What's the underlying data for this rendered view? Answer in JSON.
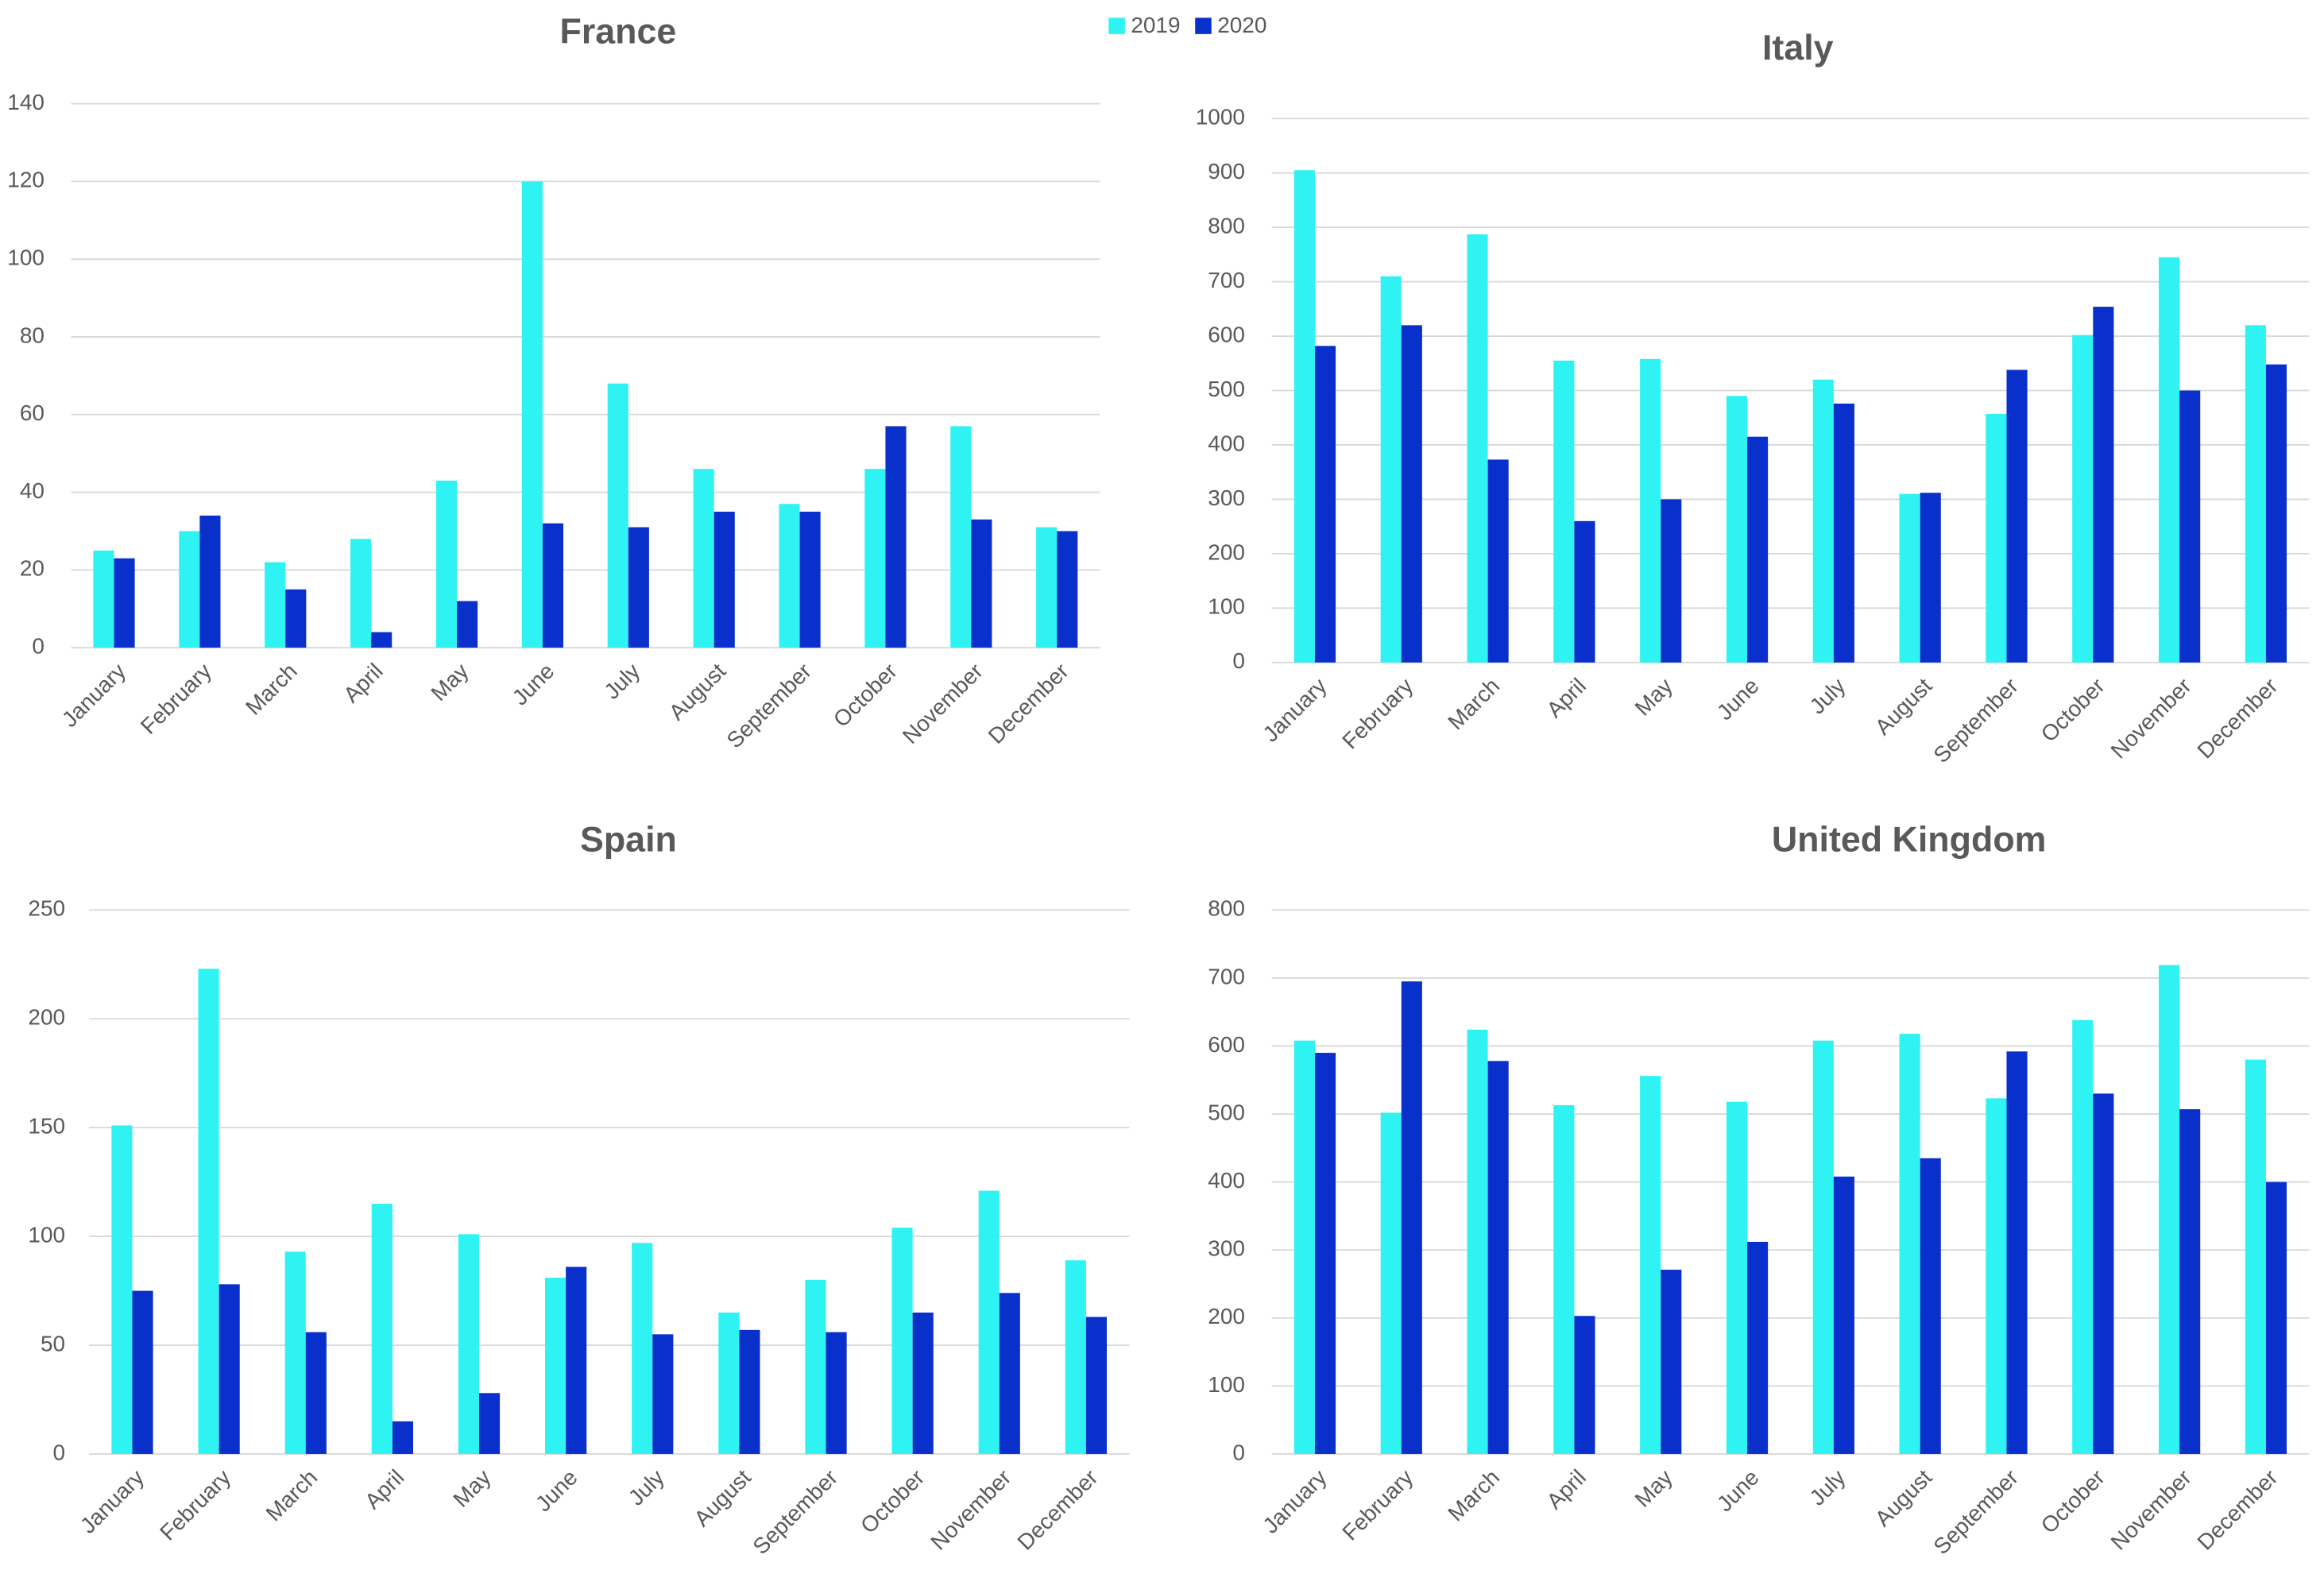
{
  "chart_data": [
    {
      "type": "bar",
      "title": "France",
      "categories": [
        "January",
        "February",
        "March",
        "April",
        "May",
        "June",
        "July",
        "August",
        "September",
        "October",
        "November",
        "December"
      ],
      "series": [
        {
          "name": "2019",
          "color": "#2ff3f3",
          "values": [
            25,
            30,
            22,
            28,
            43,
            120,
            68,
            46,
            37,
            46,
            57,
            31
          ]
        },
        {
          "name": "2020",
          "color": "#0a30cc",
          "values": [
            23,
            34,
            15,
            4,
            12,
            32,
            31,
            35,
            35,
            57,
            33,
            30
          ]
        }
      ],
      "ylim": [
        0,
        140
      ],
      "yticks": [
        0,
        20,
        40,
        60,
        80,
        100,
        120,
        140
      ],
      "grid": true
    },
    {
      "type": "bar",
      "title": "Italy",
      "categories": [
        "January",
        "February",
        "March",
        "April",
        "May",
        "June",
        "July",
        "August",
        "September",
        "October",
        "November",
        "December"
      ],
      "series": [
        {
          "name": "2019",
          "color": "#2ff3f3",
          "values": [
            905,
            710,
            787,
            555,
            558,
            490,
            520,
            310,
            457,
            602,
            745,
            620
          ]
        },
        {
          "name": "2020",
          "color": "#0a30cc",
          "values": [
            582,
            620,
            373,
            260,
            300,
            415,
            476,
            312,
            538,
            654,
            500,
            548
          ]
        }
      ],
      "ylim": [
        0,
        1000
      ],
      "yticks": [
        0,
        100,
        200,
        300,
        400,
        500,
        600,
        700,
        800,
        900,
        1000
      ],
      "grid": true
    },
    {
      "type": "bar",
      "title": "Spain",
      "categories": [
        "January",
        "February",
        "March",
        "April",
        "May",
        "June",
        "July",
        "August",
        "September",
        "October",
        "November",
        "December"
      ],
      "series": [
        {
          "name": "2019",
          "color": "#2ff3f3",
          "values": [
            151,
            223,
            93,
            115,
            101,
            81,
            97,
            65,
            80,
            104,
            121,
            89
          ]
        },
        {
          "name": "2020",
          "color": "#0a30cc",
          "values": [
            75,
            78,
            56,
            15,
            28,
            86,
            55,
            57,
            56,
            65,
            74,
            63
          ]
        }
      ],
      "ylim": [
        0,
        250
      ],
      "yticks": [
        0,
        50,
        100,
        150,
        200,
        250
      ],
      "grid": true
    },
    {
      "type": "bar",
      "title": "United Kingdom",
      "categories": [
        "January",
        "February",
        "March",
        "April",
        "May",
        "June",
        "July",
        "August",
        "September",
        "October",
        "November",
        "December"
      ],
      "series": [
        {
          "name": "2019",
          "color": "#2ff3f3",
          "values": [
            608,
            502,
            624,
            513,
            556,
            518,
            608,
            618,
            523,
            638,
            719,
            580
          ]
        },
        {
          "name": "2020",
          "color": "#0a30cc",
          "values": [
            590,
            695,
            578,
            203,
            271,
            312,
            408,
            435,
            592,
            530,
            507,
            400
          ]
        }
      ],
      "ylim": [
        0,
        800
      ],
      "yticks": [
        0,
        100,
        200,
        300,
        400,
        500,
        600,
        700,
        800
      ],
      "grid": true
    }
  ]
}
